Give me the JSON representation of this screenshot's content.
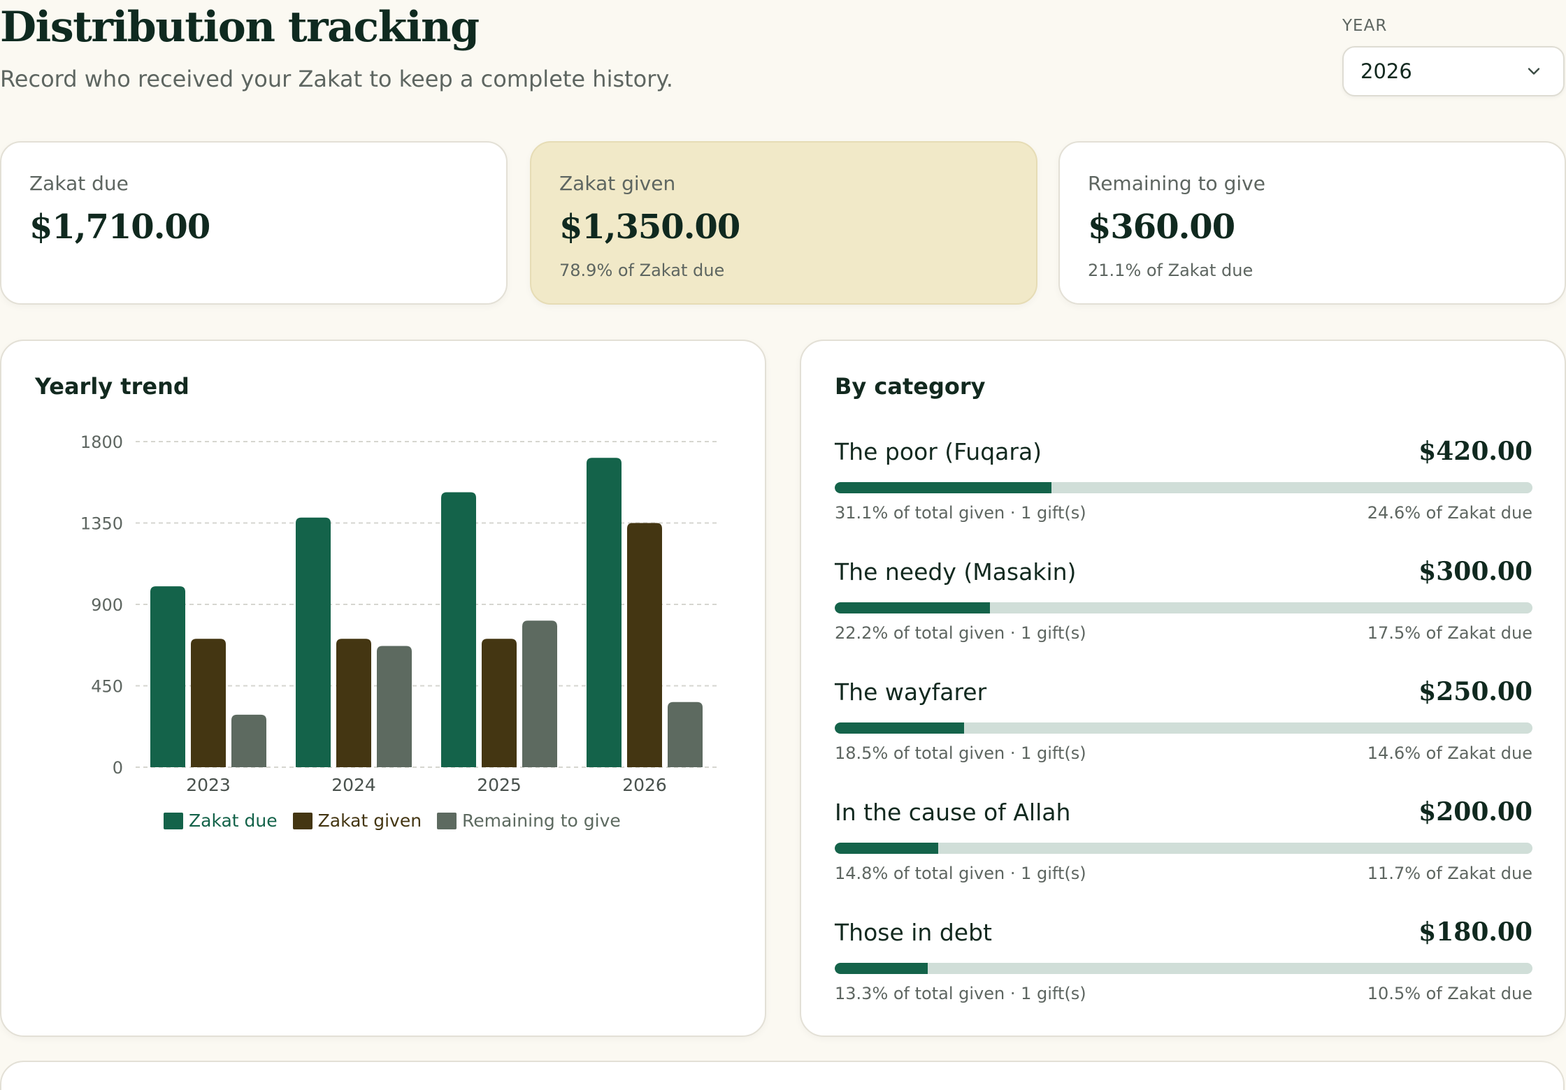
{
  "header": {
    "title": "Distribution tracking",
    "subtitle": "Record who received your Zakat to keep a complete history."
  },
  "year_selector": {
    "label": "YEAR",
    "value": "2026",
    "icon": "chevron-down-icon"
  },
  "stats": [
    {
      "label": "Zakat due",
      "value": "$1,710.00",
      "note": ""
    },
    {
      "label": "Zakat given",
      "value": "$1,350.00",
      "note": "78.9% of Zakat due"
    },
    {
      "label": "Remaining to give",
      "value": "$360.00",
      "note": "21.1% of Zakat due"
    }
  ],
  "colors": {
    "zakat_due": "#14634a",
    "zakat_given": "#443612",
    "remaining": "#5d6a60",
    "highlight_card": "#f1e9c8",
    "bar_track": "#d0ded8",
    "background": "#fbf9f2"
  },
  "yearly_trend": {
    "title": "Yearly trend"
  },
  "chart_data": {
    "type": "bar",
    "title": "Yearly trend",
    "categories": [
      "2023",
      "2024",
      "2025",
      "2026"
    ],
    "series": [
      {
        "name": "Zakat due",
        "values": [
          1000,
          1380,
          1520,
          1710
        ]
      },
      {
        "name": "Zakat given",
        "values": [
          710,
          710,
          710,
          1350
        ]
      },
      {
        "name": "Remaining to give",
        "values": [
          290,
          670,
          810,
          360
        ]
      }
    ],
    "yticks": [
      "0",
      "450",
      "900",
      "1350",
      "1800"
    ],
    "ylim": [
      0,
      1800
    ],
    "grid": true,
    "legend": "bottom"
  },
  "by_category": {
    "title": "By category",
    "items": [
      {
        "name": "The poor (Fuqara)",
        "amount": "$420.00",
        "share_of_given": 31.1,
        "left_note": "31.1% of total given · 1 gift(s)",
        "right_note": "24.6% of Zakat due"
      },
      {
        "name": "The needy (Masakin)",
        "amount": "$300.00",
        "share_of_given": 22.2,
        "left_note": "22.2% of total given · 1 gift(s)",
        "right_note": "17.5% of Zakat due"
      },
      {
        "name": "The wayfarer",
        "amount": "$250.00",
        "share_of_given": 18.5,
        "left_note": "18.5% of total given · 1 gift(s)",
        "right_note": "14.6% of Zakat due"
      },
      {
        "name": "In the cause of Allah",
        "amount": "$200.00",
        "share_of_given": 14.8,
        "left_note": "14.8% of total given · 1 gift(s)",
        "right_note": "11.7% of Zakat due"
      },
      {
        "name": "Those in debt",
        "amount": "$180.00",
        "share_of_given": 13.3,
        "left_note": "13.3% of total given · 1 gift(s)",
        "right_note": "10.5% of Zakat due"
      }
    ]
  }
}
